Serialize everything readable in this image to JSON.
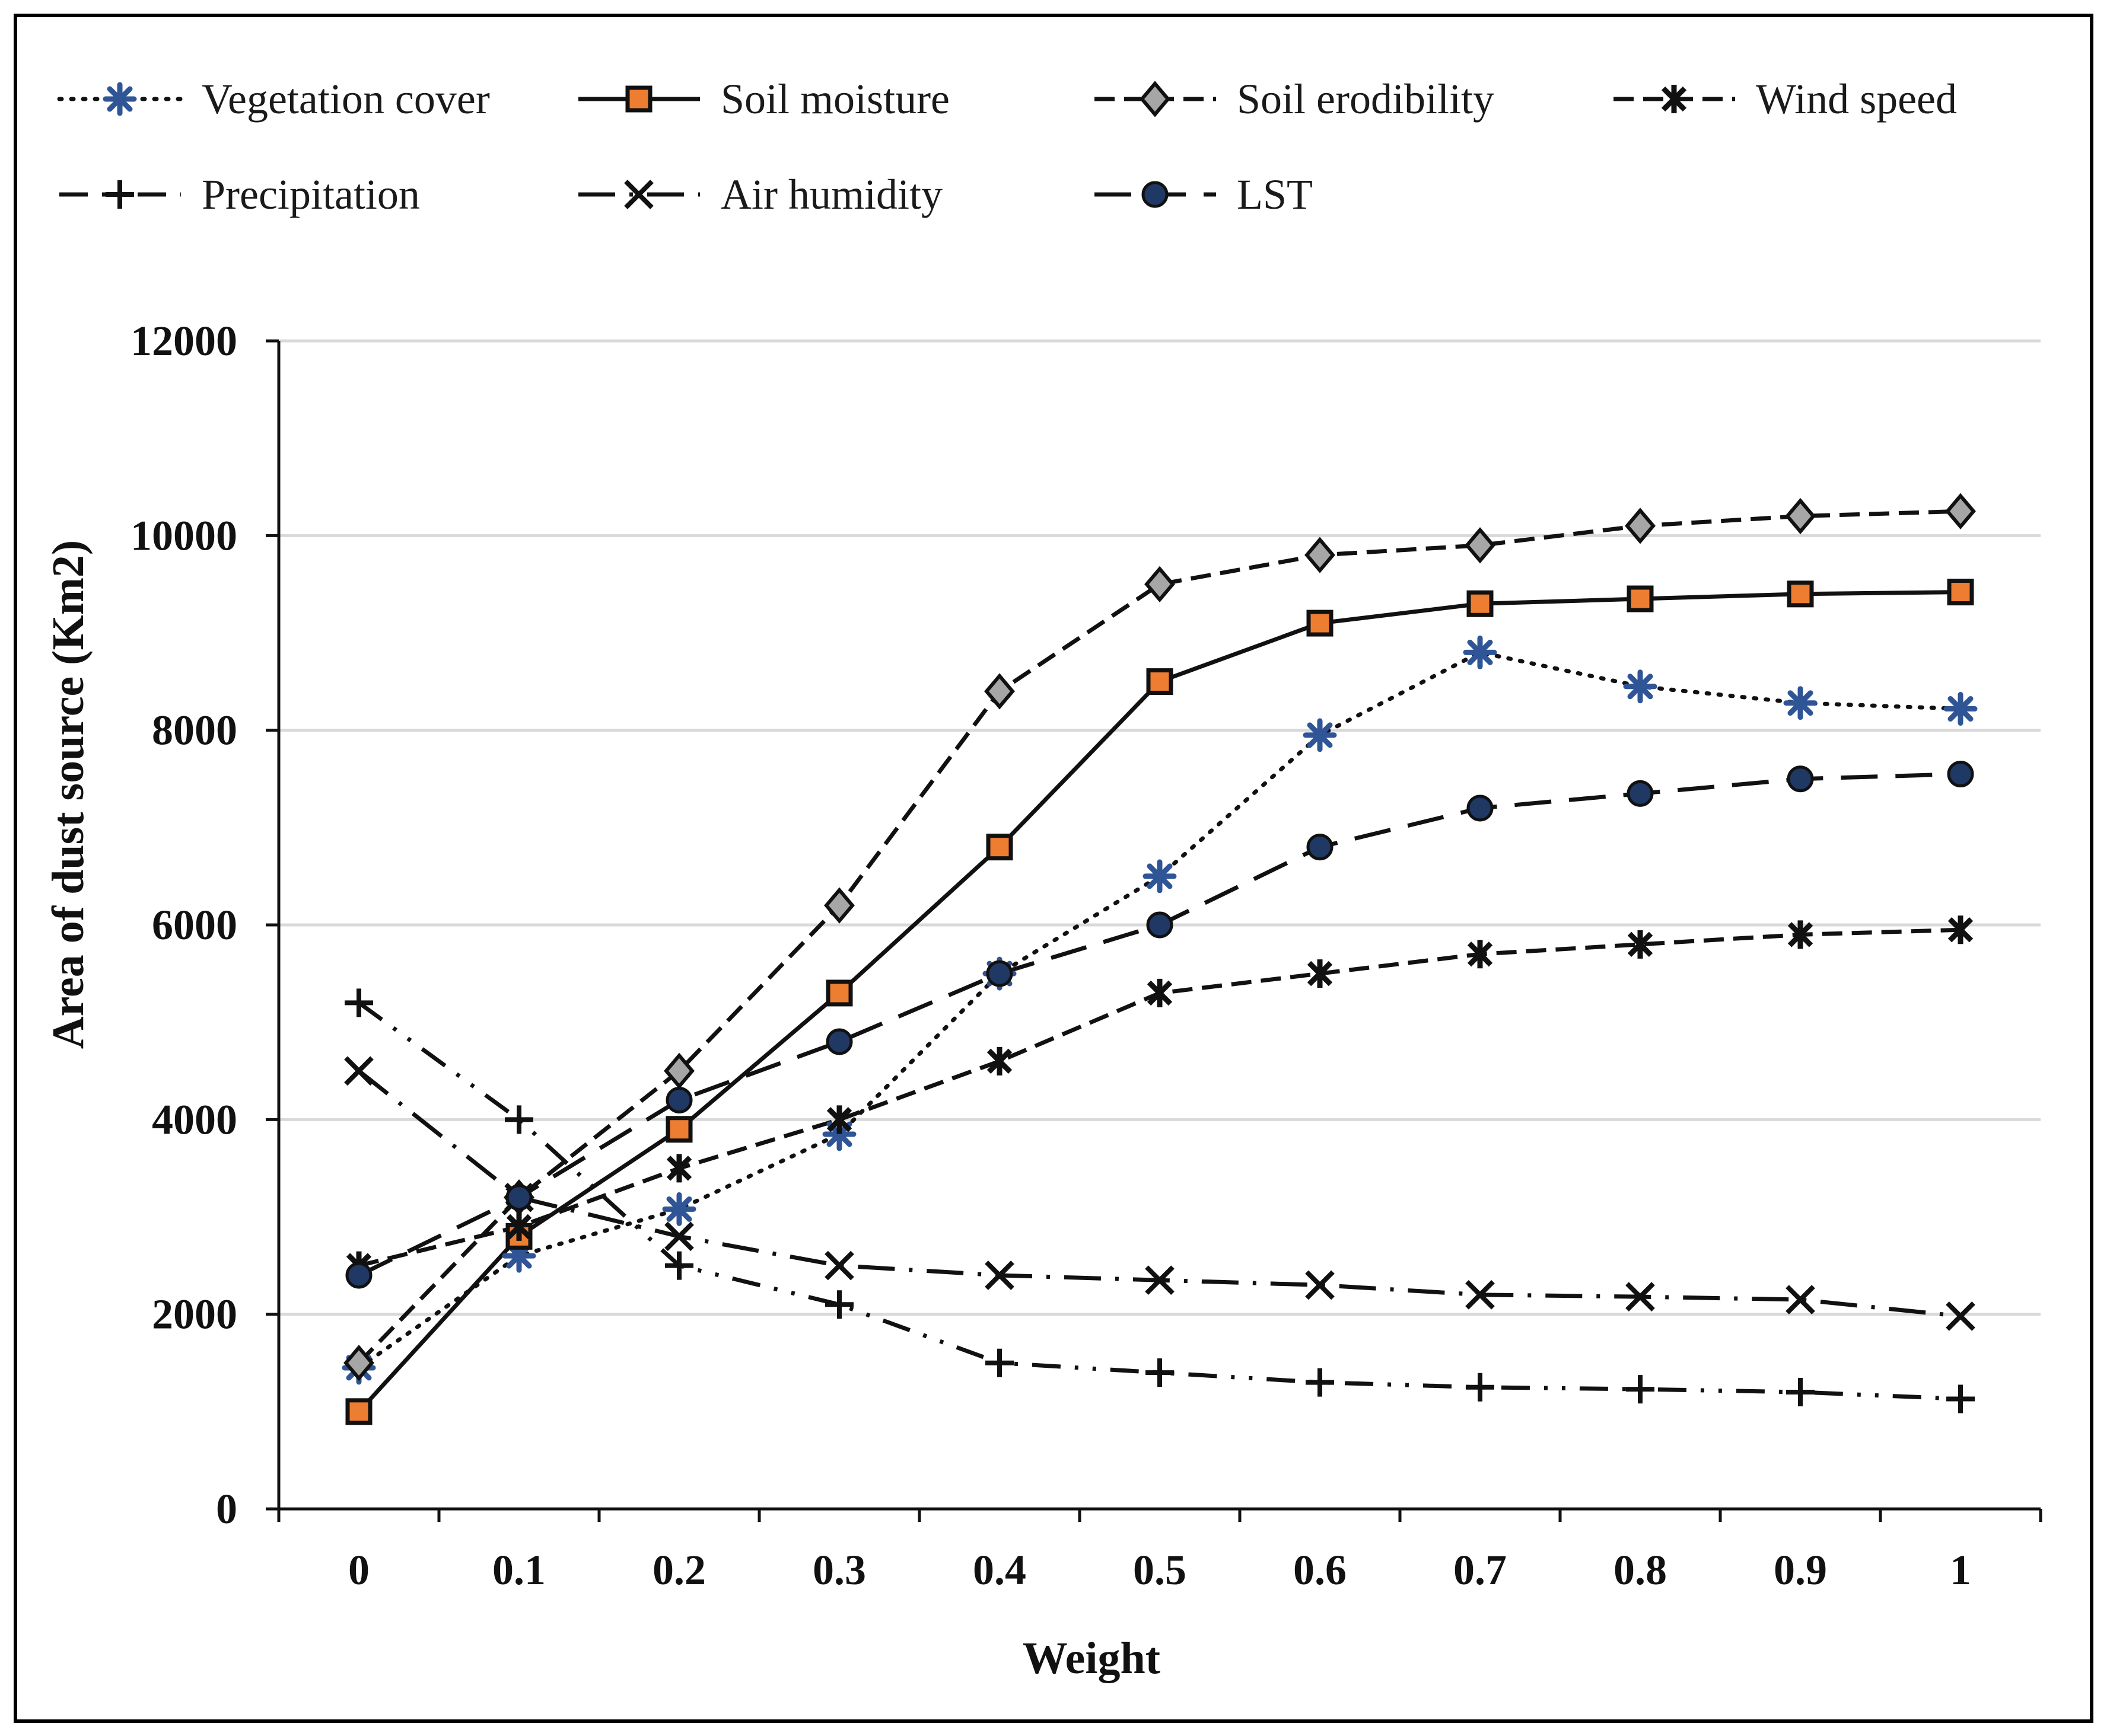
{
  "chart_data": {
    "type": "line",
    "title": "",
    "xlabel": "Weight",
    "ylabel": "Area of dust source (Km2)",
    "x": [
      0,
      0.1,
      0.2,
      0.3,
      0.4,
      0.5,
      0.6,
      0.7,
      0.8,
      0.9,
      1
    ],
    "x_tick_labels": [
      "0",
      "0.1",
      "0.2",
      "0.3",
      "0.4",
      "0.5",
      "0.6",
      "0.7",
      "0.8",
      "0.9",
      "1"
    ],
    "y_tick_values": [
      0,
      2000,
      4000,
      6000,
      8000,
      10000,
      12000
    ],
    "y_tick_labels": [
      "0",
      "2000",
      "4000",
      "6000",
      "8000",
      "10000",
      "12000"
    ],
    "ylim": [
      0,
      12000
    ],
    "grid": "horizontal",
    "legend_position": "top",
    "series": [
      {
        "name": "Vegetation cover",
        "dash": "dotted",
        "marker": "star",
        "marker_color": "#2f5597",
        "values": [
          1450,
          2600,
          3080,
          3850,
          5500,
          6500,
          7950,
          8800,
          8450,
          8280,
          8220
        ]
      },
      {
        "name": "Soil moisture",
        "dash": "solid",
        "marker": "square",
        "marker_color": "#ed7d31",
        "values": [
          1000,
          2800,
          3900,
          5300,
          6800,
          8500,
          9100,
          9300,
          9350,
          9400,
          9420
        ]
      },
      {
        "name": "Soil erodibility",
        "dash": "dashed",
        "marker": "diamond",
        "marker_color": "#a6a6a6",
        "values": [
          1500,
          3200,
          4500,
          6200,
          8400,
          9500,
          9800,
          9900,
          10100,
          10200,
          10250
        ]
      },
      {
        "name": "Wind speed",
        "dash": "dashed",
        "marker": "asterisk",
        "marker_color": "#111111",
        "values": [
          2500,
          2900,
          3500,
          4000,
          4600,
          5300,
          5500,
          5700,
          5800,
          5900,
          5950
        ]
      },
      {
        "name": "Precipitation",
        "dash": "dash-dot-dot",
        "marker": "plus",
        "marker_color": "#111111",
        "values": [
          5200,
          4000,
          2500,
          2100,
          1500,
          1400,
          1300,
          1250,
          1230,
          1200,
          1130
        ]
      },
      {
        "name": "Air humidity",
        "dash": "long-dash-dot",
        "marker": "x",
        "marker_color": "#111111",
        "values": [
          4500,
          3200,
          2800,
          2500,
          2400,
          2350,
          2300,
          2200,
          2180,
          2150,
          1980
        ]
      },
      {
        "name": "LST",
        "dash": "long-dash",
        "marker": "circle",
        "marker_color": "#1f3864",
        "values": [
          2400,
          3200,
          4200,
          4800,
          5500,
          6000,
          6800,
          7200,
          7350,
          7500,
          7550
        ]
      }
    ]
  }
}
